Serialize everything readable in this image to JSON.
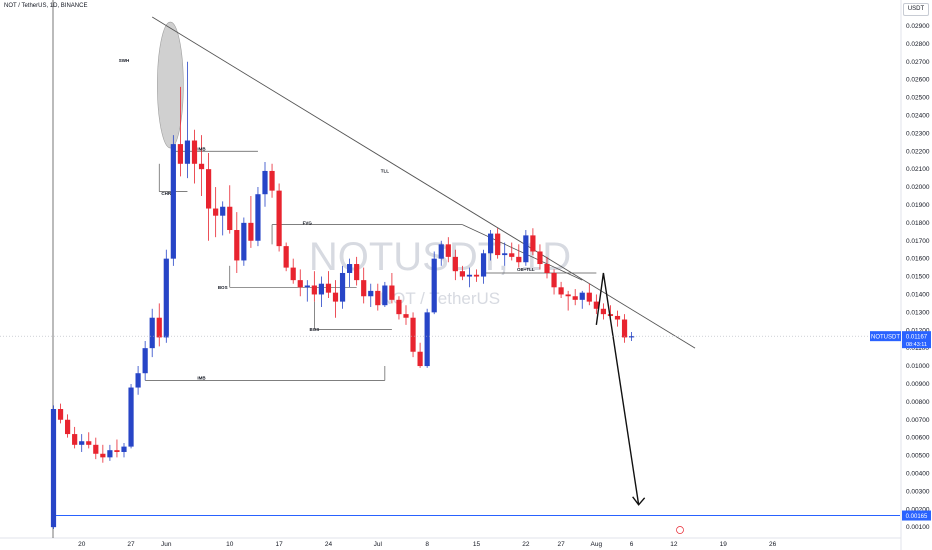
{
  "header": {
    "symbol_line": "NOT / TetherUS, 1D, BINANCE"
  },
  "price_axis": {
    "currency": "USDT"
  },
  "watermark": {
    "ticker": "NOTUSDT, 1D",
    "name": "NOT / TetherUS"
  },
  "colors": {
    "up": "#2745c7",
    "down": "#e8242f",
    "target_line": "#2962ff",
    "current_flag": "#2962ff",
    "line": "#555555"
  },
  "flags": {
    "current_symbol": "NOTUSDT",
    "current_price": "0.01167",
    "countdown": "08:43:11",
    "target_price": "0.00165"
  },
  "chart_data": {
    "type": "candlestick",
    "title": "NOT / TetherUS, 1D, BINANCE",
    "ylim": [
      0.00045,
      0.03045
    ],
    "y_ticks": [
      "0.02900",
      "0.02800",
      "0.02700",
      "0.02600",
      "0.02500",
      "0.02400",
      "0.02300",
      "0.02200",
      "0.02100",
      "0.02000",
      "0.01900",
      "0.01800",
      "0.01700",
      "0.01600",
      "0.01500",
      "0.01400",
      "0.01300",
      "0.01200",
      "0.01100",
      "0.01000",
      "0.00900",
      "0.00800",
      "0.00700",
      "0.00600",
      "0.00500",
      "0.00400",
      "0.00300",
      "0.00200",
      "0.00100"
    ],
    "x_ticks": [
      {
        "label": "20",
        "day": 4
      },
      {
        "label": "27",
        "day": 11
      },
      {
        "label": "Jun",
        "day": 16
      },
      {
        "label": "10",
        "day": 25
      },
      {
        "label": "17",
        "day": 32
      },
      {
        "label": "24",
        "day": 39
      },
      {
        "label": "Jul",
        "day": 46
      },
      {
        "label": "8",
        "day": 53
      },
      {
        "label": "15",
        "day": 60
      },
      {
        "label": "22",
        "day": 67
      },
      {
        "label": "27",
        "day": 72
      },
      {
        "label": "Aug",
        "day": 77
      },
      {
        "label": "6",
        "day": 82
      },
      {
        "label": "12",
        "day": 88
      },
      {
        "label": "19",
        "day": 95
      },
      {
        "label": "26",
        "day": 102
      }
    ],
    "candles": [
      {
        "o": 0.001,
        "h": 0.0078,
        "l": 0.0009,
        "c": 0.0076
      },
      {
        "o": 0.0076,
        "h": 0.0079,
        "l": 0.0068,
        "c": 0.007
      },
      {
        "o": 0.007,
        "h": 0.0073,
        "l": 0.006,
        "c": 0.0062
      },
      {
        "o": 0.0062,
        "h": 0.0066,
        "l": 0.0054,
        "c": 0.0056
      },
      {
        "o": 0.0056,
        "h": 0.0062,
        "l": 0.0052,
        "c": 0.0058
      },
      {
        "o": 0.0058,
        "h": 0.0063,
        "l": 0.0054,
        "c": 0.0056
      },
      {
        "o": 0.0056,
        "h": 0.006,
        "l": 0.0048,
        "c": 0.0051
      },
      {
        "o": 0.0051,
        "h": 0.0056,
        "l": 0.0046,
        "c": 0.0049
      },
      {
        "o": 0.0049,
        "h": 0.0056,
        "l": 0.0047,
        "c": 0.0053
      },
      {
        "o": 0.0053,
        "h": 0.0059,
        "l": 0.0049,
        "c": 0.0052
      },
      {
        "o": 0.0052,
        "h": 0.0057,
        "l": 0.0049,
        "c": 0.0055
      },
      {
        "o": 0.0055,
        "h": 0.009,
        "l": 0.0054,
        "c": 0.0088
      },
      {
        "o": 0.0088,
        "h": 0.01,
        "l": 0.0084,
        "c": 0.0096
      },
      {
        "o": 0.0096,
        "h": 0.0114,
        "l": 0.0092,
        "c": 0.011
      },
      {
        "o": 0.011,
        "h": 0.0132,
        "l": 0.0105,
        "c": 0.0127
      },
      {
        "o": 0.0127,
        "h": 0.0135,
        "l": 0.0111,
        "c": 0.0116
      },
      {
        "o": 0.0116,
        "h": 0.0165,
        "l": 0.0113,
        "c": 0.016
      },
      {
        "o": 0.016,
        "h": 0.0229,
        "l": 0.0156,
        "c": 0.0224
      },
      {
        "o": 0.0224,
        "h": 0.0256,
        "l": 0.0206,
        "c": 0.0213
      },
      {
        "o": 0.0213,
        "h": 0.027,
        "l": 0.0205,
        "c": 0.0226
      },
      {
        "o": 0.0226,
        "h": 0.0232,
        "l": 0.0202,
        "c": 0.0213
      },
      {
        "o": 0.0213,
        "h": 0.0229,
        "l": 0.0195,
        "c": 0.021
      },
      {
        "o": 0.021,
        "h": 0.0219,
        "l": 0.017,
        "c": 0.0188
      },
      {
        "o": 0.0188,
        "h": 0.02,
        "l": 0.0172,
        "c": 0.0184
      },
      {
        "o": 0.0184,
        "h": 0.0192,
        "l": 0.0173,
        "c": 0.0189
      },
      {
        "o": 0.0189,
        "h": 0.0201,
        "l": 0.0174,
        "c": 0.0176
      },
      {
        "o": 0.0176,
        "h": 0.0186,
        "l": 0.0152,
        "c": 0.0159
      },
      {
        "o": 0.0159,
        "h": 0.0183,
        "l": 0.0156,
        "c": 0.018
      },
      {
        "o": 0.018,
        "h": 0.0195,
        "l": 0.0166,
        "c": 0.017
      },
      {
        "o": 0.017,
        "h": 0.02,
        "l": 0.0167,
        "c": 0.0196
      },
      {
        "o": 0.0196,
        "h": 0.0214,
        "l": 0.0189,
        "c": 0.0209
      },
      {
        "o": 0.0209,
        "h": 0.0213,
        "l": 0.0194,
        "c": 0.0198
      },
      {
        "o": 0.0198,
        "h": 0.0202,
        "l": 0.0164,
        "c": 0.0167
      },
      {
        "o": 0.0167,
        "h": 0.0169,
        "l": 0.0153,
        "c": 0.0155
      },
      {
        "o": 0.0155,
        "h": 0.016,
        "l": 0.0146,
        "c": 0.0148
      },
      {
        "o": 0.0148,
        "h": 0.0154,
        "l": 0.0139,
        "c": 0.0144
      },
      {
        "o": 0.0144,
        "h": 0.0148,
        "l": 0.0136,
        "c": 0.0145
      },
      {
        "o": 0.0145,
        "h": 0.0153,
        "l": 0.0136,
        "c": 0.014
      },
      {
        "o": 0.014,
        "h": 0.015,
        "l": 0.0133,
        "c": 0.0146
      },
      {
        "o": 0.0146,
        "h": 0.0153,
        "l": 0.0138,
        "c": 0.0141
      },
      {
        "o": 0.0141,
        "h": 0.0148,
        "l": 0.0127,
        "c": 0.0136
      },
      {
        "o": 0.0136,
        "h": 0.0156,
        "l": 0.0132,
        "c": 0.0152
      },
      {
        "o": 0.0152,
        "h": 0.016,
        "l": 0.0144,
        "c": 0.0157
      },
      {
        "o": 0.0157,
        "h": 0.0161,
        "l": 0.0145,
        "c": 0.0148
      },
      {
        "o": 0.0148,
        "h": 0.0155,
        "l": 0.0135,
        "c": 0.0139
      },
      {
        "o": 0.0139,
        "h": 0.0146,
        "l": 0.0133,
        "c": 0.0142
      },
      {
        "o": 0.0142,
        "h": 0.0146,
        "l": 0.0131,
        "c": 0.0134
      },
      {
        "o": 0.0134,
        "h": 0.0147,
        "l": 0.0133,
        "c": 0.0145
      },
      {
        "o": 0.0145,
        "h": 0.0152,
        "l": 0.0135,
        "c": 0.0137
      },
      {
        "o": 0.0137,
        "h": 0.0139,
        "l": 0.0126,
        "c": 0.0129
      },
      {
        "o": 0.0129,
        "h": 0.0134,
        "l": 0.0123,
        "c": 0.0127
      },
      {
        "o": 0.0127,
        "h": 0.013,
        "l": 0.0105,
        "c": 0.0108
      },
      {
        "o": 0.0108,
        "h": 0.0113,
        "l": 0.0099,
        "c": 0.01
      },
      {
        "o": 0.01,
        "h": 0.0132,
        "l": 0.0099,
        "c": 0.013
      },
      {
        "o": 0.013,
        "h": 0.0164,
        "l": 0.0129,
        "c": 0.016
      },
      {
        "o": 0.016,
        "h": 0.017,
        "l": 0.0156,
        "c": 0.0168
      },
      {
        "o": 0.0168,
        "h": 0.0172,
        "l": 0.0158,
        "c": 0.0161
      },
      {
        "o": 0.0161,
        "h": 0.0165,
        "l": 0.0148,
        "c": 0.0153
      },
      {
        "o": 0.0153,
        "h": 0.0156,
        "l": 0.0148,
        "c": 0.015
      },
      {
        "o": 0.015,
        "h": 0.0155,
        "l": 0.0144,
        "c": 0.0151
      },
      {
        "o": 0.0151,
        "h": 0.0154,
        "l": 0.0147,
        "c": 0.015
      },
      {
        "o": 0.015,
        "h": 0.0165,
        "l": 0.0146,
        "c": 0.0163
      },
      {
        "o": 0.0163,
        "h": 0.0176,
        "l": 0.0159,
        "c": 0.0174
      },
      {
        "o": 0.0174,
        "h": 0.0177,
        "l": 0.016,
        "c": 0.0162
      },
      {
        "o": 0.0162,
        "h": 0.0169,
        "l": 0.0156,
        "c": 0.0163
      },
      {
        "o": 0.0163,
        "h": 0.0169,
        "l": 0.0159,
        "c": 0.0161
      },
      {
        "o": 0.0161,
        "h": 0.0168,
        "l": 0.0155,
        "c": 0.0158
      },
      {
        "o": 0.0158,
        "h": 0.0176,
        "l": 0.0156,
        "c": 0.0173
      },
      {
        "o": 0.0173,
        "h": 0.0177,
        "l": 0.0162,
        "c": 0.0164
      },
      {
        "o": 0.0164,
        "h": 0.0168,
        "l": 0.0154,
        "c": 0.0157
      },
      {
        "o": 0.0157,
        "h": 0.0161,
        "l": 0.0149,
        "c": 0.0152
      },
      {
        "o": 0.0152,
        "h": 0.0154,
        "l": 0.014,
        "c": 0.0144
      },
      {
        "o": 0.0144,
        "h": 0.0147,
        "l": 0.0138,
        "c": 0.014
      },
      {
        "o": 0.014,
        "h": 0.0142,
        "l": 0.0131,
        "c": 0.0139
      },
      {
        "o": 0.0139,
        "h": 0.0143,
        "l": 0.0134,
        "c": 0.0137
      },
      {
        "o": 0.0137,
        "h": 0.0142,
        "l": 0.0132,
        "c": 0.0141
      },
      {
        "o": 0.0141,
        "h": 0.0146,
        "l": 0.0134,
        "c": 0.0136
      },
      {
        "o": 0.0136,
        "h": 0.014,
        "l": 0.0129,
        "c": 0.0132
      },
      {
        "o": 0.0132,
        "h": 0.0135,
        "l": 0.0126,
        "c": 0.0129
      },
      {
        "o": 0.0129,
        "h": 0.0134,
        "l": 0.0125,
        "c": 0.0128
      },
      {
        "o": 0.0128,
        "h": 0.0131,
        "l": 0.0122,
        "c": 0.0126
      },
      {
        "o": 0.0126,
        "h": 0.0129,
        "l": 0.0113,
        "c": 0.0116
      },
      {
        "o": 0.0116,
        "h": 0.0119,
        "l": 0.0114,
        "c": 0.01167
      }
    ],
    "annotations": [
      {
        "label": "SWH",
        "day": 10,
        "price": 0.027
      },
      {
        "label": "IMB",
        "day": 21,
        "price": 0.02205
      },
      {
        "label": "CHR",
        "day": 16,
        "price": 0.01955
      },
      {
        "label": "TLL",
        "day": 47,
        "price": 0.0208
      },
      {
        "label": "FVG",
        "day": 36,
        "price": 0.0179
      },
      {
        "label": "BOS",
        "day": 24,
        "price": 0.0143
      },
      {
        "label": "BOS",
        "day": 37,
        "price": 0.01195
      },
      {
        "label": "IMB",
        "day": 21,
        "price": 0.00925
      },
      {
        "label": "OB+TLL",
        "day": 67,
        "price": 0.0153
      }
    ],
    "lines": {
      "main_trendline": [
        [
          14,
          0.0295
        ],
        [
          91,
          0.011
        ]
      ],
      "steep_trendline": [
        [
          58,
          0.0179
        ],
        [
          75,
          0.0148
        ]
      ],
      "imb_top": [
        [
          17,
          0.022
        ],
        [
          29,
          0.022
        ]
      ],
      "fvg": [
        [
          31,
          0.0179
        ],
        [
          58,
          0.0179
        ]
      ],
      "bos1": [
        [
          25,
          0.0144
        ],
        [
          43,
          0.0144
        ]
      ],
      "bos2": [
        [
          37,
          0.01205
        ],
        [
          48,
          0.01205
        ]
      ],
      "imb_bottom": [
        [
          13,
          0.0092
        ],
        [
          47,
          0.0092
        ]
      ],
      "ob_tll": [
        [
          61,
          0.0152
        ],
        [
          77,
          0.0152
        ]
      ],
      "chr": [
        [
          15,
          0.01975
        ],
        [
          19,
          0.01975
        ]
      ],
      "projection": [
        [
          77,
          0.0123
        ],
        [
          78,
          0.0152
        ],
        [
          83,
          0.00225
        ]
      ]
    },
    "target_level": 0.00165,
    "current_price": 0.01167,
    "ellipse": {
      "day": 17,
      "price": 0.0257
    }
  }
}
